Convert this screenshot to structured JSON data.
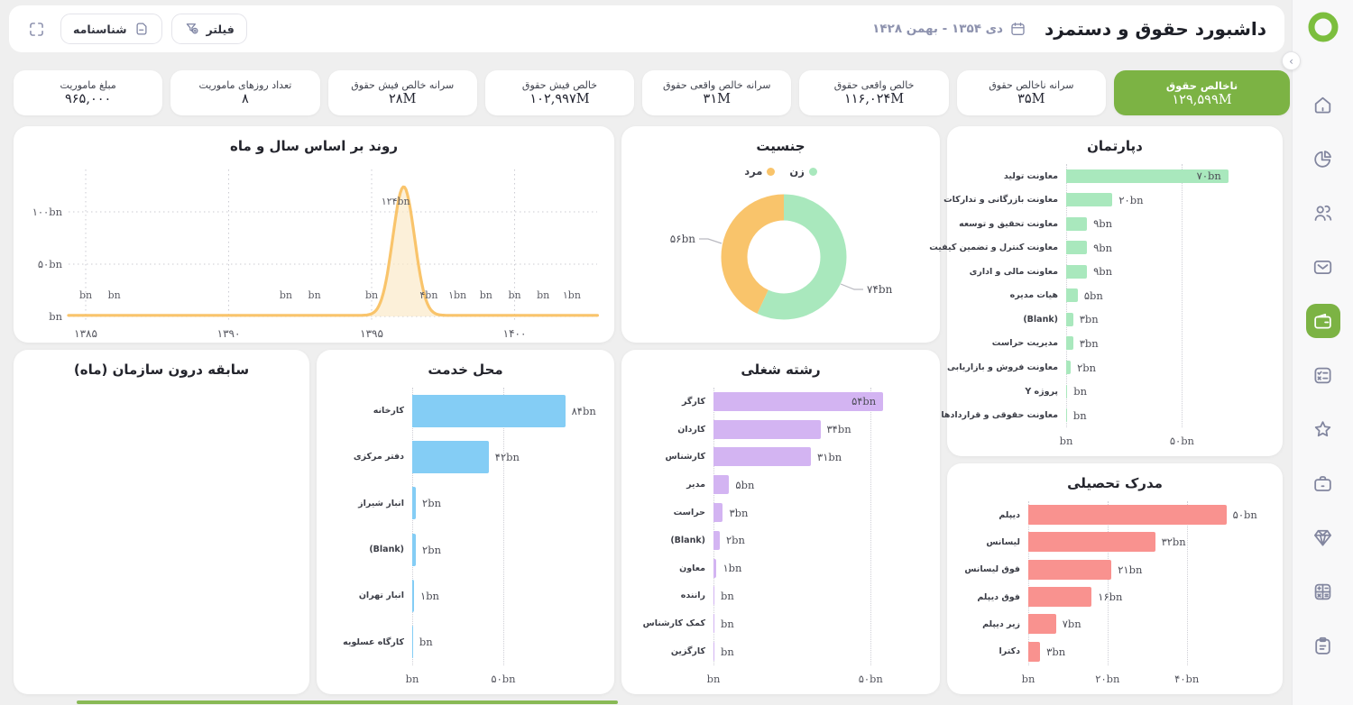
{
  "header": {
    "title": "داشبورد حقوق و دستمزد",
    "date_range": "دی ۱۳۵۴ - بهمن ۱۴۲۸",
    "filter_label": "فیلتر",
    "id_card_label": "شناسنامه",
    "icons": [
      "calendar-icon",
      "funnel-plus-icon",
      "id-document-icon",
      "fullscreen-icon"
    ]
  },
  "colors": {
    "accent_green": "#7CB344",
    "logo_green": "#7CBE3E",
    "mint": "#A9E8BD",
    "orange": "#F9C46B",
    "area_fill": "#FBE8C4",
    "blue": "#84CDF5",
    "purple": "#D3B4F2",
    "pink": "#F9928F",
    "icon_gray": "#82869F",
    "grid_gray": "#CFCFD6"
  },
  "kpis": [
    {
      "label": "ناخالص حقوق",
      "value": "۱۲۹,۵۹۹M",
      "active": true
    },
    {
      "label": "سرانه ناخالص حقوق",
      "value": "۳۵M",
      "active": false
    },
    {
      "label": "خالص واقعی حقوق",
      "value": "۱۱۶,۰۲۴M",
      "active": false
    },
    {
      "label": "سرانه خالص واقعی حقوق",
      "value": "۳۱M",
      "active": false
    },
    {
      "label": "خالص فیش حقوق",
      "value": "۱۰۲,۹۹۷M",
      "active": false
    },
    {
      "label": "سرانه خالص فیش حقوق",
      "value": "۲۸M",
      "active": false
    },
    {
      "label": "تعداد روزهای ماموریت",
      "value": "۸",
      "active": false
    },
    {
      "label": "مبلغ ماموریت",
      "value": "۹۶۵,۰۰۰",
      "active": false
    }
  ],
  "sidebar": {
    "items": [
      {
        "icon": "home",
        "active": false
      },
      {
        "icon": "pie-chart",
        "active": false
      },
      {
        "icon": "users",
        "active": false
      },
      {
        "icon": "mail",
        "active": false
      },
      {
        "icon": "wallet",
        "active": true
      },
      {
        "icon": "checklist",
        "active": false
      },
      {
        "icon": "star",
        "active": false
      },
      {
        "icon": "briefcase",
        "active": false
      },
      {
        "icon": "diamond",
        "active": false
      },
      {
        "icon": "calculator",
        "active": false
      },
      {
        "icon": "clipboard",
        "active": false
      }
    ]
  },
  "chart_data": [
    {
      "type": "area",
      "title": "روند بر اساس سال و ماه",
      "series_color": "#F9C46B",
      "x": [
        1385,
        1386,
        1392,
        1393,
        1395,
        1396,
        1397,
        1398,
        1399,
        1400,
        1401,
        1402
      ],
      "values": [
        0,
        0,
        0,
        0,
        0,
        124,
        4,
        1,
        0,
        0,
        0,
        1
      ],
      "point_labels": [
        "bn",
        "bn",
        "bn",
        "bn",
        "bn",
        "۱۲۴bn",
        "۴bn",
        "۱bn",
        "bn",
        "bn",
        "bn",
        "۱bn"
      ],
      "x_ticks": [
        {
          "label": "۱۳۸۵",
          "year": 1385
        },
        {
          "label": "۱۳۹۰",
          "year": 1390
        },
        {
          "label": "۱۳۹۵",
          "year": 1395
        },
        {
          "label": "۱۴۰۰",
          "year": 1400
        }
      ],
      "y_ticks": [
        {
          "label": "bn",
          "value": 0
        },
        {
          "label": "۵۰bn",
          "value": 50
        },
        {
          "label": "۱۰۰bn",
          "value": 100
        }
      ],
      "ylim": [
        0,
        130
      ],
      "grid": true,
      "legend_position": "none"
    },
    {
      "type": "donut",
      "title": "جنسیت",
      "slices": [
        {
          "label": "زن",
          "value": 74,
          "display": "۷۴bn",
          "color": "#A9E8BD"
        },
        {
          "label": "مرد",
          "value": 56,
          "display": "۵۶bn",
          "color": "#F9C46B"
        }
      ],
      "legend_position": "top"
    },
    {
      "type": "bar",
      "title": "دپارتمان",
      "bar_color": "#A9E8BD",
      "categories": [
        "معاونت تولید",
        "معاونت بازرگانی و تدارکات",
        "معاونت تحقیق و توسعه",
        "معاونت کنترل و تضمین کیفیت",
        "معاونت مالی و اداری",
        "هیات مدیره",
        "(Blank)",
        "مدیریت حراست",
        "معاونت فروش و بازاریابی",
        "پروژه Y",
        "معاونت حقوقی و قراردادها"
      ],
      "values": [
        70,
        20,
        9,
        9,
        9,
        5,
        3,
        3,
        2,
        0.5,
        0.3
      ],
      "labels": [
        "۷۰bn",
        "۲۰bn",
        "۹bn",
        "۹bn",
        "۹bn",
        "۵bn",
        "۳bn",
        "۳bn",
        "۲bn",
        "bn",
        "bn"
      ],
      "label_inside": [
        true,
        false,
        false,
        false,
        false,
        false,
        false,
        false,
        false,
        false,
        false
      ],
      "x_ticks": [
        {
          "label": "bn",
          "value": 0
        },
        {
          "label": "۵۰bn",
          "value": 50
        }
      ],
      "axis_max": 88
    },
    {
      "type": "bar",
      "title": "سابقه درون سازمان (ماه)",
      "bar_color": "#84CDF5",
      "categories": [],
      "values": [],
      "labels": [],
      "label_inside": [],
      "x_ticks": [],
      "axis_max": 1,
      "empty": true
    },
    {
      "type": "bar",
      "title": "محل خدمت",
      "bar_color": "#84CDF5",
      "categories": [
        "کارخانه",
        "دفتر مرکزی",
        "انبار شیراز",
        "(Blank)",
        "انبار تهران",
        "کارگاه عسلویه"
      ],
      "values": [
        84,
        42,
        2,
        2,
        1,
        0.3
      ],
      "labels": [
        "۸۴bn",
        "۴۲bn",
        "۲bn",
        "۲bn",
        "۱bn",
        "bn"
      ],
      "label_inside": [
        false,
        false,
        false,
        false,
        false,
        false
      ],
      "x_ticks": [
        {
          "label": "bn",
          "value": 0
        },
        {
          "label": "۵۰bn",
          "value": 50
        }
      ],
      "axis_max": 104
    },
    {
      "type": "bar",
      "title": "رشته شغلی",
      "bar_color": "#D3B4F2",
      "categories": [
        "کارگر",
        "کاردان",
        "کارشناس",
        "مدیر",
        "حراست",
        "(Blank)",
        "معاون",
        "راننده",
        "کمک کارشناس",
        "کارگزین"
      ],
      "values": [
        54,
        34,
        31,
        5,
        3,
        2,
        1,
        0.3,
        0.3,
        0.3
      ],
      "labels": [
        "۵۴bn",
        "۳۴bn",
        "۳۱bn",
        "۵bn",
        "۳bn",
        "۲bn",
        "۱bn",
        "bn",
        "bn",
        "bn"
      ],
      "label_inside": [
        true,
        false,
        false,
        false,
        false,
        false,
        false,
        false,
        false,
        false
      ],
      "x_ticks": [
        {
          "label": "bn",
          "value": 0
        },
        {
          "label": "۵۰bn",
          "value": 50
        }
      ],
      "axis_max": 68
    },
    {
      "type": "bar",
      "title": "مدرک تحصیلی",
      "bar_color": "#F9928F",
      "categories": [
        "دیپلم",
        "لیسانس",
        "فوق لیسانس",
        "فوق دیپلم",
        "زیر دیپلم",
        "دکترا"
      ],
      "values": [
        50,
        32,
        21,
        16,
        7,
        3
      ],
      "labels": [
        "۵۰bn",
        "۳۲bn",
        "۲۱bn",
        "۱۶bn",
        "۷bn",
        "۳bn"
      ],
      "label_inside": [
        false,
        false,
        false,
        false,
        false,
        false
      ],
      "x_ticks": [
        {
          "label": "bn",
          "value": 0
        },
        {
          "label": "۲۰bn",
          "value": 20
        },
        {
          "label": "۴۰bn",
          "value": 40
        }
      ],
      "axis_max": 61
    }
  ]
}
